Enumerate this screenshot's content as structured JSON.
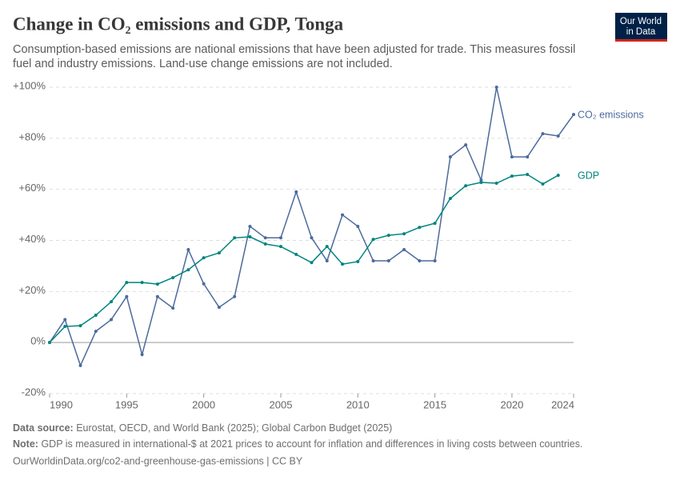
{
  "chart_data": {
    "type": "line",
    "title": "Change in CO₂ emissions and GDP, Tonga",
    "subtitle": [
      "Consumption-based emissions are national emissions that have been adjusted for trade. This measures fossil",
      "fuel and industry emissions. Land-use change emissions are not included."
    ],
    "logo": [
      "Our World",
      "in Data"
    ],
    "x": [
      1990,
      1991,
      1992,
      1993,
      1994,
      1995,
      1996,
      1997,
      1998,
      1999,
      2000,
      2001,
      2002,
      2003,
      2004,
      2005,
      2006,
      2007,
      2008,
      2009,
      2010,
      2011,
      2012,
      2013,
      2014,
      2015,
      2016,
      2017,
      2018,
      2019,
      2020,
      2021,
      2022,
      2023,
      2024
    ],
    "series": [
      {
        "name": "CO₂ emissions",
        "color": "#4c6a9c",
        "values": [
          0,
          9,
          -9,
          4.4,
          9,
          18,
          -4.7,
          18,
          13.5,
          36.4,
          23,
          13.8,
          18,
          45.5,
          41,
          41,
          59,
          41,
          32,
          50,
          45.5,
          32,
          32,
          36.4,
          32,
          32,
          72.7,
          77.4,
          63.6,
          100,
          72.7,
          72.7,
          81.8,
          80.9,
          89.3
        ]
      },
      {
        "name": "GDP",
        "color": "#00847e",
        "values": [
          0,
          6.3,
          6.6,
          10.7,
          16,
          23.5,
          23.5,
          22.9,
          25.4,
          28.5,
          33.2,
          35.1,
          41,
          41.4,
          38.6,
          37.6,
          34.5,
          31.3,
          37.6,
          30.7,
          31.7,
          40.4,
          42,
          42.6,
          45.1,
          46.7,
          56.4,
          61.4,
          62.7,
          62.4,
          65.2,
          65.8,
          62.1,
          65.5,
          null
        ]
      }
    ],
    "xlim": [
      1990,
      2024
    ],
    "xticks": [
      1990,
      1995,
      2000,
      2005,
      2010,
      2015,
      2020,
      2024
    ],
    "ylim": [
      -20,
      100
    ],
    "yticks": [
      {
        "value": -20,
        "label": "-20%"
      },
      {
        "value": 0,
        "label": "0%"
      },
      {
        "value": 20,
        "label": "+20%"
      },
      {
        "value": 40,
        "label": "+40%"
      },
      {
        "value": 60,
        "label": "+60%"
      },
      {
        "value": 80,
        "label": "+80%"
      },
      {
        "value": 100,
        "label": "+100%"
      }
    ],
    "grid": true,
    "source_label": "Data source:",
    "source": "Eurostat, OECD, and World Bank (2025); Global Carbon Budget (2025)",
    "note_label": "Note:",
    "note": "GDP is measured in international-$ at 2021 prices to account for inflation and differences in living costs between countries.",
    "url": "OurWorldinData.org/co2-and-greenhouse-gas-emissions | CC BY"
  }
}
